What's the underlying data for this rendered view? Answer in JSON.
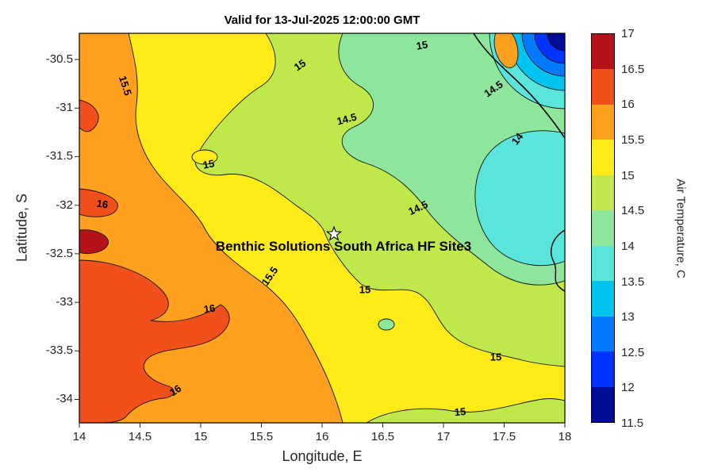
{
  "chart_data": {
    "type": "heatmap",
    "subtype": "filled_contour_map",
    "title": "Valid for 13-Jul-2025 12:00:00 GMT",
    "xlabel": "Longitude, E",
    "ylabel": "Latitude, S",
    "xlim": [
      14,
      18
    ],
    "ylim": [
      -34.3,
      -30.2
    ],
    "xticks": [
      "14",
      "14.5",
      "15",
      "15.5",
      "16",
      "16.5",
      "17",
      "17.5",
      "18"
    ],
    "yticks": [
      "-30.5",
      "-31",
      "-31.5",
      "-32",
      "-32.5",
      "-33",
      "-33.5",
      "-34"
    ],
    "grid": false,
    "colorbar": {
      "label": "Air Temperature, C",
      "min": 11.5,
      "max": 17,
      "band_step": 0.5,
      "ticks": [
        "17",
        "16.5",
        "16",
        "15.5",
        "15",
        "14.5",
        "14",
        "13.5",
        "13",
        "12.5",
        "12",
        "11.5"
      ],
      "colors_low_to_high": [
        "#000c96",
        "#0033ff",
        "#007bff",
        "#00c3f0",
        "#59e4dc",
        "#8de69b",
        "#bfe84b",
        "#ffeb17",
        "#ffa01e",
        "#f2501a",
        "#b3121b"
      ]
    },
    "contour_levels_labeled": [
      14,
      14.5,
      15,
      15.5,
      16
    ],
    "contour_labels": [
      {
        "text": "15.5",
        "lon": 14.38,
        "lat": -30.77
      },
      {
        "text": "15",
        "lon": 15.82,
        "lat": -30.56
      },
      {
        "text": "15",
        "lon": 16.82,
        "lat": -30.35
      },
      {
        "text": "14.5",
        "lon": 16.19,
        "lat": -31.11
      },
      {
        "text": "14.5",
        "lon": 17.41,
        "lat": -30.8
      },
      {
        "text": "14.5",
        "lon": 16.79,
        "lat": -32.03
      },
      {
        "text": "14",
        "lon": 17.61,
        "lat": -31.32
      },
      {
        "text": "15",
        "lon": 15.06,
        "lat": -31.59
      },
      {
        "text": "15",
        "lon": 16.35,
        "lat": -32.87
      },
      {
        "text": "15",
        "lon": 17.43,
        "lat": -33.56
      },
      {
        "text": "15",
        "lon": 17.14,
        "lat": -34.14
      },
      {
        "text": "15.5",
        "lon": 15.58,
        "lat": -32.71
      },
      {
        "text": "16",
        "lon": 14.18,
        "lat": -31.99
      },
      {
        "text": "16",
        "lon": 15.07,
        "lat": -33.07
      },
      {
        "text": "16",
        "lon": 14.78,
        "lat": -33.91
      }
    ],
    "marker": {
      "symbol": "star",
      "lon": 16.1,
      "lat": -32.3,
      "label": "Benthic Solutions South Africa HF Site3"
    },
    "coastline": true
  }
}
